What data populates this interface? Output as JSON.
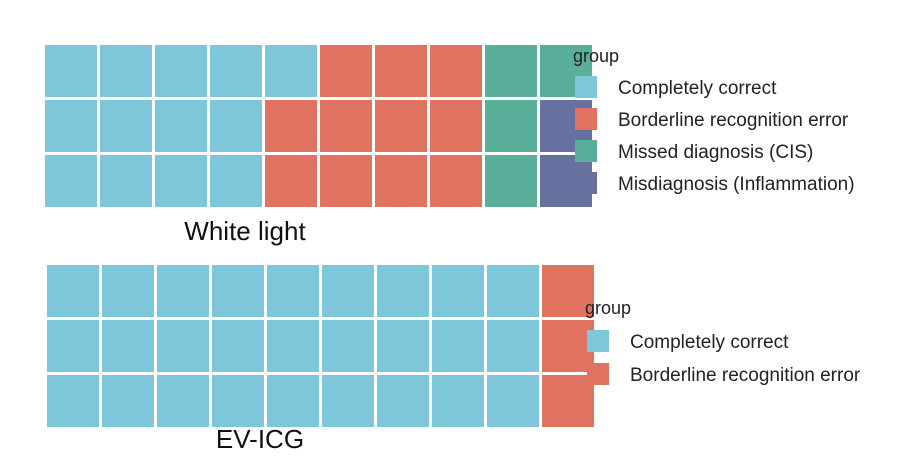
{
  "colors": {
    "Completely correct": "#7ec6da",
    "Borderline recognition error": "#e0735f",
    "Missed diagnosis (CIS)": "#5aaf9b",
    "Misdiagnosis (Inflammation)": "#67719f"
  },
  "chart_data": [
    {
      "type": "waffle",
      "title": "White light",
      "legend_title": "group",
      "legend_position": "right",
      "rows": 3,
      "columns": 10,
      "series": [
        {
          "name": "Completely correct",
          "values": [
            13
          ]
        },
        {
          "name": "Borderline recognition error",
          "values": [
            11
          ]
        },
        {
          "name": "Missed diagnosis (CIS)",
          "values": [
            4
          ]
        },
        {
          "name": "Misdiagnosis (Inflammation)",
          "values": [
            2
          ]
        }
      ],
      "grid": false
    },
    {
      "type": "waffle",
      "title": "EV-ICG",
      "legend_title": "group",
      "legend_position": "right",
      "rows": 3,
      "columns": 10,
      "series": [
        {
          "name": "Completely correct",
          "values": [
            27
          ]
        },
        {
          "name": "Borderline recognition error",
          "values": [
            3
          ]
        }
      ],
      "grid": false
    }
  ]
}
